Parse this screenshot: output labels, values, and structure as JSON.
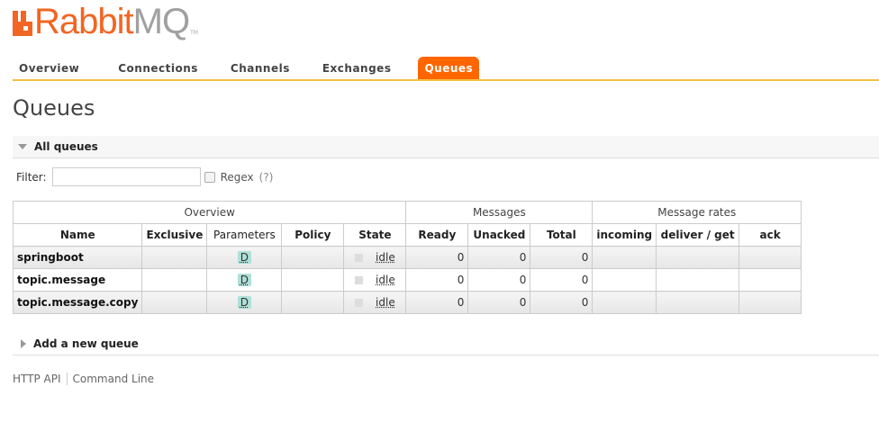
{
  "brand": {
    "name_part1": "Rabbit",
    "name_part2": "MQ",
    "tm": "TM",
    "color": "#f26522"
  },
  "nav": {
    "tabs": [
      {
        "label": "Overview"
      },
      {
        "label": "Connections"
      },
      {
        "label": "Channels"
      },
      {
        "label": "Exchanges"
      },
      {
        "label": "Queues",
        "active": true
      }
    ]
  },
  "page_title": "Queues",
  "all_queues": {
    "label": "All queues",
    "expanded": true
  },
  "filter": {
    "label": "Filter:",
    "value": "",
    "regex_label": "Regex",
    "regex_hint": "(?)",
    "regex_checked": false
  },
  "table": {
    "groups": [
      "Overview",
      "Messages",
      "Message rates"
    ],
    "columns": [
      "Name",
      "Exclusive",
      "Parameters",
      "Policy",
      "State",
      "Ready",
      "Unacked",
      "Total",
      "incoming",
      "deliver / get",
      "ack"
    ],
    "rows": [
      {
        "name": "springboot",
        "exclusive": "",
        "parameters": "D",
        "policy": "",
        "state": "idle",
        "ready": "0",
        "unacked": "0",
        "total": "0",
        "incoming": "",
        "deliver_get": "",
        "ack": ""
      },
      {
        "name": "topic.message",
        "exclusive": "",
        "parameters": "D",
        "policy": "",
        "state": "idle",
        "ready": "0",
        "unacked": "0",
        "total": "0",
        "incoming": "",
        "deliver_get": "",
        "ack": ""
      },
      {
        "name": "topic.message.copy",
        "exclusive": "",
        "parameters": "D",
        "policy": "",
        "state": "idle",
        "ready": "0",
        "unacked": "0",
        "total": "0",
        "incoming": "",
        "deliver_get": "",
        "ack": ""
      }
    ]
  },
  "add_queue": {
    "label": "Add a new queue",
    "expanded": false
  },
  "footer": {
    "links": [
      "HTTP API",
      "Command Line"
    ]
  }
}
